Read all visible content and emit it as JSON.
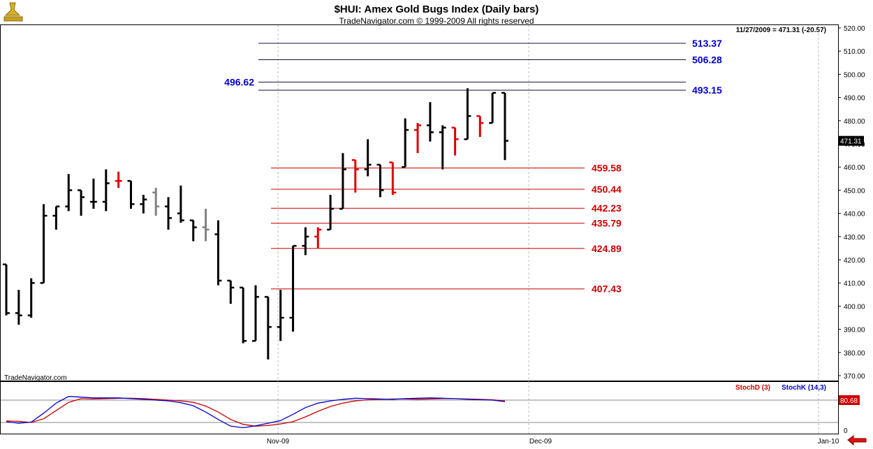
{
  "header": {
    "title": "$HUI:  Amex Gold Bugs Index  (Daily bars)",
    "subtitle": "TradeNavigator.com © 1999-2009 All rights reserved",
    "status": "11/27/2009 = 471.31 (-20.57)",
    "watermark": "TradeNavigator.com"
  },
  "colors": {
    "up_bar": "#000000",
    "down_bar": "#e00000",
    "neutral_bar": "#808080",
    "blue_level": "#0000cc",
    "red_level": "#cc0000",
    "stochD": "#cc0000",
    "stochK": "#0000cc"
  },
  "chart_data": [
    {
      "type": "ohlc",
      "title": "$HUI:  Amex Gold Bugs Index  (Daily bars)",
      "ylim": [
        366,
        524
      ],
      "y_ticks": [
        "520.00",
        "510.00",
        "500.00",
        "490.00",
        "480.00",
        "470.00",
        "460.00",
        "450.00",
        "440.00",
        "430.00",
        "420.00",
        "410.00",
        "400.00",
        "390.00",
        "380.00",
        "370.00"
      ],
      "x_tick_labels": [
        "Nov-09",
        "Dec-09",
        "Jan-10"
      ],
      "last_value_label": "471.31",
      "bars": [
        {
          "o": 418,
          "h": 418,
          "l": 396,
          "c": 397,
          "color": "up"
        },
        {
          "o": 397,
          "h": 407,
          "l": 392,
          "c": 396,
          "color": "up"
        },
        {
          "o": 396,
          "h": 412,
          "l": 395,
          "c": 410,
          "color": "up"
        },
        {
          "o": 410,
          "h": 444,
          "l": 410,
          "c": 439,
          "color": "up"
        },
        {
          "o": 439,
          "h": 443,
          "l": 433,
          "c": 443,
          "color": "up"
        },
        {
          "o": 443,
          "h": 457,
          "l": 441,
          "c": 450,
          "color": "up"
        },
        {
          "o": 450,
          "h": 450,
          "l": 439,
          "c": 447,
          "color": "up"
        },
        {
          "o": 445,
          "h": 455,
          "l": 442,
          "c": 445,
          "color": "up"
        },
        {
          "o": 445,
          "h": 459,
          "l": 441,
          "c": 453,
          "color": "up"
        },
        {
          "o": 454,
          "h": 458,
          "l": 451,
          "c": 454,
          "color": "down"
        },
        {
          "o": 454,
          "h": 454,
          "l": 442,
          "c": 444,
          "color": "up"
        },
        {
          "o": 444,
          "h": 448,
          "l": 440,
          "c": 446,
          "color": "up"
        },
        {
          "o": 449,
          "h": 451,
          "l": 439,
          "c": 443,
          "color": "neutral"
        },
        {
          "o": 443,
          "h": 447,
          "l": 433,
          "c": 438,
          "color": "up"
        },
        {
          "o": 440,
          "h": 452,
          "l": 436,
          "c": 437,
          "color": "up"
        },
        {
          "o": 437,
          "h": 437,
          "l": 428,
          "c": 434,
          "color": "up"
        },
        {
          "o": 434,
          "h": 442,
          "l": 428,
          "c": 433,
          "color": "neutral"
        },
        {
          "o": 431,
          "h": 437,
          "l": 409,
          "c": 411,
          "color": "up"
        },
        {
          "o": 411,
          "h": 411,
          "l": 401,
          "c": 408,
          "color": "up"
        },
        {
          "o": 408,
          "h": 408,
          "l": 384,
          "c": 385,
          "color": "up"
        },
        {
          "o": 385,
          "h": 409,
          "l": 385,
          "c": 404,
          "color": "up"
        },
        {
          "o": 404,
          "h": 404,
          "l": 377,
          "c": 391,
          "color": "up"
        },
        {
          "o": 391,
          "h": 407,
          "l": 385,
          "c": 395,
          "color": "up"
        },
        {
          "o": 395,
          "h": 426,
          "l": 389,
          "c": 426,
          "color": "up"
        },
        {
          "o": 426,
          "h": 434,
          "l": 422,
          "c": 430,
          "color": "up"
        },
        {
          "o": 430,
          "h": 434,
          "l": 425,
          "c": 433,
          "color": "down"
        },
        {
          "o": 433,
          "h": 448,
          "l": 433,
          "c": 442,
          "color": "up"
        },
        {
          "o": 442,
          "h": 466,
          "l": 442,
          "c": 459,
          "color": "up"
        },
        {
          "o": 463,
          "h": 463,
          "l": 449,
          "c": 459,
          "color": "down"
        },
        {
          "o": 459,
          "h": 472,
          "l": 456,
          "c": 461,
          "color": "up"
        },
        {
          "o": 461,
          "h": 461,
          "l": 447,
          "c": 450,
          "color": "up"
        },
        {
          "o": 462,
          "h": 462,
          "l": 448,
          "c": 449,
          "color": "down"
        },
        {
          "o": 460,
          "h": 481,
          "l": 460,
          "c": 476,
          "color": "up"
        },
        {
          "o": 476,
          "h": 479,
          "l": 466,
          "c": 478,
          "color": "down"
        },
        {
          "o": 478,
          "h": 488,
          "l": 471,
          "c": 475,
          "color": "up"
        },
        {
          "o": 475,
          "h": 478,
          "l": 459,
          "c": 477,
          "color": "up"
        },
        {
          "o": 477,
          "h": 477,
          "l": 465,
          "c": 472,
          "color": "down"
        },
        {
          "o": 472,
          "h": 494,
          "l": 472,
          "c": 482,
          "color": "up"
        },
        {
          "o": 482,
          "h": 482,
          "l": 473,
          "c": 479,
          "color": "down"
        },
        {
          "o": 479,
          "h": 492,
          "l": 479,
          "c": 492,
          "color": "up"
        },
        {
          "o": 492,
          "h": 492,
          "l": 463,
          "c": 471.31,
          "color": "up"
        }
      ]
    },
    {
      "type": "line",
      "title": "",
      "legend": [
        "StochD (3)",
        "StochK (14,3)"
      ],
      "y_ticks": [
        "0"
      ],
      "last_value_label": "80.68",
      "ylim": [
        -8,
        112
      ],
      "series": [
        {
          "name": "StochD (3)",
          "values": [
            24,
            23,
            20,
            30,
            52,
            74,
            84,
            83,
            84,
            85,
            85,
            84,
            82,
            80,
            78,
            74,
            64,
            48,
            28,
            15,
            10,
            12,
            16,
            22,
            35,
            50,
            63,
            72,
            78,
            81,
            82,
            83,
            83,
            82,
            83,
            84,
            84,
            83,
            82,
            81,
            78
          ]
        },
        {
          "name": "StochK (14,3)",
          "values": [
            22,
            18,
            21,
            45,
            72,
            90,
            88,
            86,
            86,
            86,
            84,
            82,
            80,
            78,
            73,
            65,
            48,
            28,
            10,
            6,
            11,
            18,
            25,
            42,
            60,
            72,
            78,
            82,
            85,
            84,
            83,
            82,
            84,
            85,
            86,
            85,
            84,
            82,
            81,
            80,
            76
          ]
        }
      ]
    }
  ],
  "levels": {
    "blue": [
      {
        "value": 513.37,
        "label": "513.37"
      },
      {
        "value": 506.28,
        "label": "506.28"
      },
      {
        "value": 496.62,
        "label": "496.62"
      },
      {
        "value": 493.15,
        "label": "493.15"
      }
    ],
    "red": [
      {
        "value": 459.58,
        "label": "459.58"
      },
      {
        "value": 450.44,
        "label": "450.44"
      },
      {
        "value": 442.23,
        "label": "442.23"
      },
      {
        "value": 435.79,
        "label": "435.79"
      },
      {
        "value": 424.89,
        "label": "424.89"
      },
      {
        "value": 407.43,
        "label": "407.43"
      }
    ]
  }
}
